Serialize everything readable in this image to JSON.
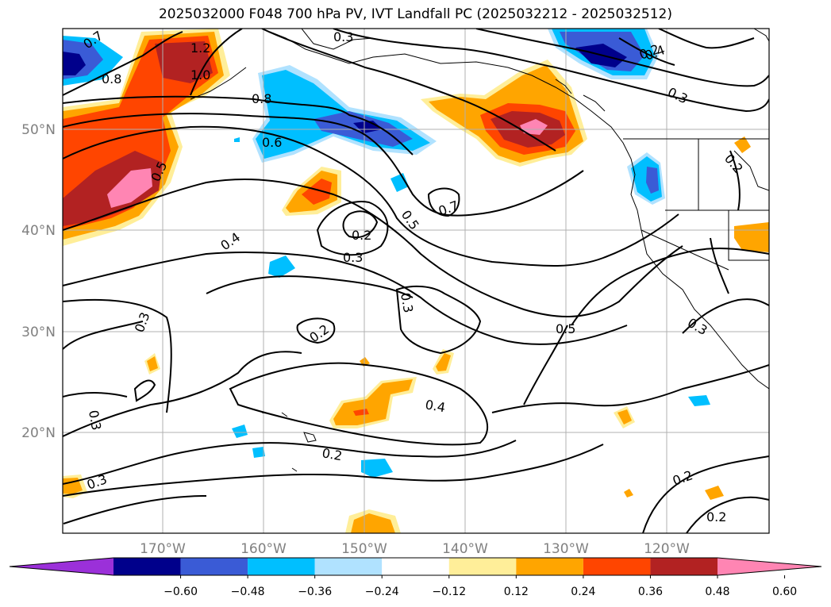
{
  "title": "2025032000 F048 700 hPa PV, IVT Landfall PC (2025032212 - 2025032512)",
  "map": {
    "lat_labels": [
      "50°N",
      "40°N",
      "30°N",
      "20°N"
    ],
    "lon_labels": [
      "170°W",
      "160°W",
      "150°W",
      "140°W",
      "130°W",
      "120°W"
    ],
    "contour_labels": [
      "0.7",
      "1.2",
      "1.0",
      "0.8",
      "0.8",
      "0.3",
      "0.6",
      "0.5",
      "0.4",
      "0.2",
      "0.3",
      "0.5",
      "0.7",
      "0.3",
      "0.2",
      "0.5",
      "0.3",
      "0.3",
      "0.4",
      "0.2",
      "0.3",
      "0.2",
      "0.2",
      "0.4",
      "0.3",
      "0.2",
      "0.2",
      "0.3"
    ]
  },
  "colorbar": {
    "colors": [
      "#9b30d9",
      "#00008b",
      "#3a5bd6",
      "#00bfff",
      "#b0e2ff",
      "#ffffff",
      "#ffee99",
      "#ffa500",
      "#ff4500",
      "#b22222",
      "#ff85b3"
    ],
    "tick_labels": [
      "−0.60",
      "−0.48",
      "−0.36",
      "−0.24",
      "−0.12",
      "0.12",
      "0.24",
      "0.36",
      "0.48",
      "0.60"
    ]
  }
}
